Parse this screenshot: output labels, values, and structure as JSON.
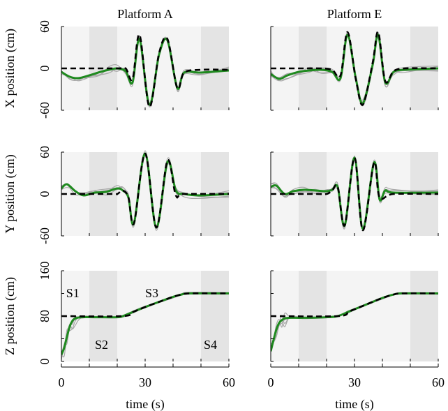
{
  "chart_data": {
    "type": "line",
    "columns": [
      "Platform A",
      "Platform E"
    ],
    "ylabels": [
      "X position (cm)",
      "Y position (cm)",
      "Z position (cm)"
    ],
    "xlabel": "time (s)",
    "xlim": [
      0,
      60
    ],
    "xticks": [
      0,
      30,
      60
    ],
    "yticks": [
      [
        -60,
        0,
        60
      ],
      [
        -60,
        0,
        60
      ],
      [
        0,
        80,
        160
      ]
    ],
    "ylims": [
      [
        -60,
        60
      ],
      [
        -60,
        60
      ],
      [
        0,
        160
      ]
    ],
    "phases": [
      {
        "label": "S1",
        "range": [
          0,
          10
        ]
      },
      {
        "label": "S2",
        "range": [
          10,
          20
        ]
      },
      {
        "label": "S3",
        "range": [
          20,
          50
        ]
      },
      {
        "label": "S4",
        "range": [
          50,
          60
        ]
      }
    ],
    "colors": {
      "phase_light": "#f4f4f4",
      "phase_dark": "#e4e4e4",
      "mean": "#1f8a1f",
      "reference": "#000000",
      "trial": "#a8a8a8"
    },
    "series": [
      {
        "panel": "X-A",
        "reference": [
          [
            0,
            0
          ],
          [
            20,
            0
          ],
          [
            23,
            0
          ],
          [
            25.5,
            -15
          ],
          [
            28,
            48
          ],
          [
            31.5,
            -55
          ],
          [
            35,
            22
          ],
          [
            38,
            42
          ],
          [
            41.5,
            -28
          ],
          [
            44,
            -6
          ],
          [
            50,
            -2
          ],
          [
            60,
            -2
          ]
        ],
        "mean": [
          [
            0,
            -5
          ],
          [
            3,
            -12
          ],
          [
            6,
            -14
          ],
          [
            10,
            -10
          ],
          [
            14,
            -5
          ],
          [
            17,
            -2
          ],
          [
            20,
            0
          ],
          [
            23,
            -4
          ],
          [
            25.5,
            -20
          ],
          [
            28,
            42
          ],
          [
            31.5,
            -52
          ],
          [
            35,
            20
          ],
          [
            38,
            40
          ],
          [
            41.5,
            -28
          ],
          [
            44,
            -6
          ],
          [
            50,
            -6
          ],
          [
            60,
            -3
          ]
        ]
      },
      {
        "panel": "X-E",
        "reference": [
          [
            0,
            0
          ],
          [
            10,
            0
          ],
          [
            14,
            0
          ],
          [
            18,
            0
          ],
          [
            22,
            -2
          ],
          [
            25,
            -10
          ],
          [
            27.5,
            52
          ],
          [
            30.5,
            -16
          ],
          [
            33,
            -52
          ],
          [
            36.5,
            8
          ],
          [
            38.5,
            52
          ],
          [
            41,
            -18
          ],
          [
            44,
            -4
          ],
          [
            48,
            0
          ],
          [
            60,
            0
          ]
        ],
        "mean": [
          [
            0,
            -8
          ],
          [
            3,
            -15
          ],
          [
            6,
            -10
          ],
          [
            10,
            -5
          ],
          [
            14,
            -3
          ],
          [
            18,
            -2
          ],
          [
            22,
            -5
          ],
          [
            25,
            -14
          ],
          [
            27.5,
            48
          ],
          [
            30.5,
            -15
          ],
          [
            33,
            -50
          ],
          [
            36.5,
            5
          ],
          [
            38.5,
            48
          ],
          [
            41,
            -20
          ],
          [
            44,
            -5
          ],
          [
            48,
            -2
          ],
          [
            60,
            0
          ]
        ]
      },
      {
        "panel": "Y-A",
        "reference": [
          [
            0,
            0
          ],
          [
            18,
            0
          ],
          [
            20,
            0
          ],
          [
            22,
            5
          ],
          [
            24,
            -5
          ],
          [
            26,
            -42
          ],
          [
            30,
            58
          ],
          [
            34,
            -48
          ],
          [
            38,
            48
          ],
          [
            41,
            -2
          ],
          [
            44,
            0
          ],
          [
            60,
            0
          ]
        ],
        "mean": [
          [
            0,
            8
          ],
          [
            2,
            14
          ],
          [
            5,
            4
          ],
          [
            8,
            -2
          ],
          [
            12,
            2
          ],
          [
            16,
            3
          ],
          [
            20,
            8
          ],
          [
            22,
            5
          ],
          [
            24,
            -5
          ],
          [
            26,
            -42
          ],
          [
            30,
            58
          ],
          [
            34,
            -48
          ],
          [
            38,
            46
          ],
          [
            41,
            5
          ],
          [
            44,
            0
          ],
          [
            50,
            -2
          ],
          [
            60,
            0
          ]
        ]
      },
      {
        "panel": "Y-E",
        "reference": [
          [
            0,
            0
          ],
          [
            16,
            0
          ],
          [
            20,
            0
          ],
          [
            22,
            5
          ],
          [
            24,
            10
          ],
          [
            26.5,
            -45
          ],
          [
            30,
            52
          ],
          [
            33,
            -52
          ],
          [
            37,
            45
          ],
          [
            39,
            -5
          ],
          [
            44,
            0
          ],
          [
            60,
            0
          ]
        ],
        "mean": [
          [
            0,
            10
          ],
          [
            2,
            12
          ],
          [
            5,
            0
          ],
          [
            8,
            4
          ],
          [
            12,
            6
          ],
          [
            16,
            5
          ],
          [
            20,
            4
          ],
          [
            22,
            6
          ],
          [
            24,
            10
          ],
          [
            26.5,
            -45
          ],
          [
            30,
            52
          ],
          [
            33,
            -50
          ],
          [
            37,
            45
          ],
          [
            39,
            -8
          ],
          [
            41,
            5
          ],
          [
            44,
            2
          ],
          [
            60,
            2
          ]
        ]
      },
      {
        "panel": "Z-A",
        "reference": [
          [
            0,
            80
          ],
          [
            22,
            80
          ],
          [
            26,
            88
          ],
          [
            30,
            96
          ],
          [
            36,
            107
          ],
          [
            40,
            114
          ],
          [
            43,
            118
          ],
          [
            46,
            120
          ],
          [
            60,
            120
          ]
        ],
        "mean": [
          [
            0,
            12
          ],
          [
            1,
            24
          ],
          [
            2,
            44
          ],
          [
            3,
            62
          ],
          [
            4,
            72
          ],
          [
            5,
            76
          ],
          [
            7,
            78
          ],
          [
            12,
            78
          ],
          [
            20,
            78
          ],
          [
            22,
            80
          ],
          [
            26,
            88
          ],
          [
            30,
            96
          ],
          [
            36,
            107
          ],
          [
            40,
            114
          ],
          [
            43,
            118
          ],
          [
            46,
            120
          ],
          [
            60,
            120
          ]
        ]
      },
      {
        "panel": "Z-E",
        "reference": [
          [
            0,
            80
          ],
          [
            24,
            80
          ],
          [
            28,
            88
          ],
          [
            32,
            96
          ],
          [
            36,
            104
          ],
          [
            40,
            112
          ],
          [
            44,
            118
          ],
          [
            47,
            120
          ],
          [
            60,
            120
          ]
        ],
        "mean": [
          [
            0,
            18
          ],
          [
            1,
            38
          ],
          [
            2,
            56
          ],
          [
            3,
            68
          ],
          [
            4,
            73
          ],
          [
            5,
            76
          ],
          [
            7,
            77
          ],
          [
            12,
            77
          ],
          [
            20,
            78
          ],
          [
            24,
            80
          ],
          [
            28,
            88
          ],
          [
            32,
            96
          ],
          [
            36,
            104
          ],
          [
            40,
            112
          ],
          [
            44,
            118
          ],
          [
            47,
            120
          ],
          [
            60,
            120
          ]
        ]
      }
    ]
  }
}
